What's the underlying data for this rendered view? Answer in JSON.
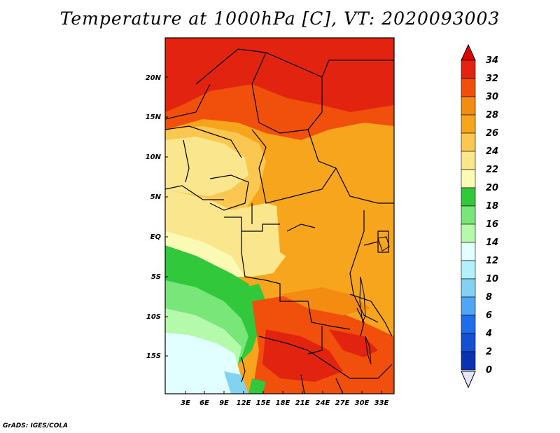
{
  "title": "Temperature at 1000hPa [C], VT: 2020093003",
  "footer": "GrADS: IGES/COLA",
  "map": {
    "lat_labels": [
      "20N",
      "15N",
      "10N",
      "5N",
      "EQ",
      "5S",
      "10S",
      "15S"
    ],
    "lon_labels": [
      "3E",
      "6E",
      "9E",
      "12E",
      "15E",
      "18E",
      "21E",
      "24E",
      "27E",
      "30E",
      "33E"
    ]
  },
  "colorbar": {
    "labels": [
      "34",
      "32",
      "30",
      "28",
      "26",
      "24",
      "22",
      "20",
      "18",
      "16",
      "14",
      "12",
      "10",
      "8",
      "6",
      "4",
      "2",
      "0"
    ],
    "colors": [
      "#e1230f",
      "#f0500c",
      "#f58c12",
      "#f8a51e",
      "#fac850",
      "#fae68c",
      "#fafab4",
      "#32c83c",
      "#78e678",
      "#b4faaa",
      "#e1ffff",
      "#b4f0fa",
      "#82d2f0",
      "#50a5f5",
      "#1e6eeb",
      "#1450d2",
      "#0a32b4",
      "#00147d"
    ],
    "top_color": "#e10000",
    "bottom_color": "#e6e6fa"
  }
}
